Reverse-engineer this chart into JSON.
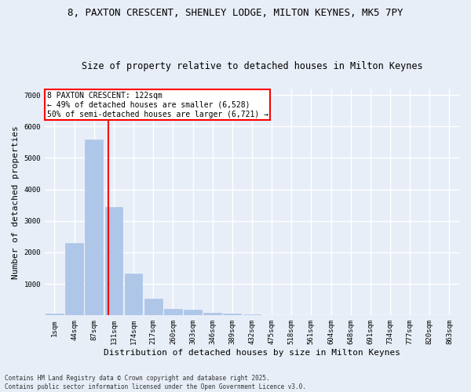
{
  "title_line1": "8, PAXTON CRESCENT, SHENLEY LODGE, MILTON KEYNES, MK5 7PY",
  "title_line2": "Size of property relative to detached houses in Milton Keynes",
  "xlabel": "Distribution of detached houses by size in Milton Keynes",
  "ylabel": "Number of detached properties",
  "categories": [
    "1sqm",
    "44sqm",
    "87sqm",
    "131sqm",
    "174sqm",
    "217sqm",
    "260sqm",
    "303sqm",
    "346sqm",
    "389sqm",
    "432sqm",
    "475sqm",
    "518sqm",
    "561sqm",
    "604sqm",
    "648sqm",
    "691sqm",
    "734sqm",
    "777sqm",
    "820sqm",
    "863sqm"
  ],
  "values": [
    70,
    2300,
    5580,
    3450,
    1320,
    530,
    210,
    185,
    95,
    60,
    30,
    10,
    5,
    3,
    2,
    1,
    1,
    0,
    0,
    0,
    0
  ],
  "bar_color": "#aec6e8",
  "bar_edge_color": "#aec6e8",
  "vline_x_index": 2.72,
  "vline_color": "red",
  "annotation_text": "8 PAXTON CRESCENT: 122sqm\n← 49% of detached houses are smaller (6,528)\n50% of semi-detached houses are larger (6,721) →",
  "annotation_box_color": "white",
  "annotation_box_edge_color": "red",
  "ylim": [
    0,
    7200
  ],
  "yticks": [
    0,
    1000,
    2000,
    3000,
    4000,
    5000,
    6000,
    7000
  ],
  "background_color": "#e8eef8",
  "grid_color": "white",
  "footnote": "Contains HM Land Registry data © Crown copyright and database right 2025.\nContains public sector information licensed under the Open Government Licence v3.0.",
  "title_fontsize": 9,
  "subtitle_fontsize": 8.5,
  "tick_fontsize": 6.5,
  "label_fontsize": 8,
  "annot_fontsize": 7
}
